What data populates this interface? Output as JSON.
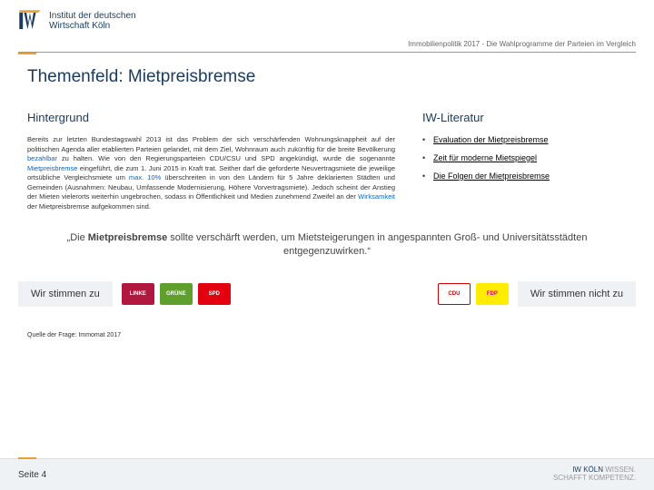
{
  "header": {
    "institute_line1": "Institut der deutschen",
    "institute_line2": "Wirtschaft Köln",
    "subtitle": "Immobilienpolitik 2017 - Die Wahlprogramme der Parteien im Vergleich"
  },
  "title": "Themenfeld: Mietpreisbremse",
  "background": {
    "heading": "Hintergrund",
    "text_parts": [
      "Bereits zur letzten Bundestagswahl 2013 ist das Problem der sich verschärfenden Wohnungsknappheit auf der politischen Agenda aller etablierten Parteien gelandet, mit dem Ziel, Wohnraum auch zukünftig für die breite Bevölkerung ",
      "bezahlbar",
      " zu halten. Wie von den Regierungsparteien CDU/CSU und SPD angekündigt, wurde die sogenannte ",
      "Mietpreisbremse",
      " eingeführt, die zum 1. Juni 2015 in Kraft trat. Seither darf die geforderte Neuvertragsmiete die jeweilige ortsübliche Vergleichsmiete um ",
      "max. 10%",
      " überschreiten in von den Ländern für 5 Jahre deklarierten Städten und Gemeinden (Ausnahmen: Neubau, Umfassende Modernisierung, Höhere Vorvertragsmiete). Jedoch scheint der Anstieg der Mieten vielerorts weiterhin ungebrochen, sodass in Öffentlichkeit und Medien zunehmend Zweifel an der ",
      "Wirksamkeit",
      " der Mietpreisbremse aufgekommen sind."
    ]
  },
  "literature": {
    "heading": "IW-Literatur",
    "items": [
      "Evaluation der Mietpreisbremse",
      "Zeit für moderne Mietspiegel",
      "Die Folgen der Mietpreisbremse"
    ]
  },
  "quote": {
    "prefix": "„Die ",
    "em": "Mietpreisbremse",
    "rest": " sollte verschärft werden, um Mietsteigerungen in angespannten Groß- und Universitätsstädten entgegenzuwirken.“"
  },
  "parties": {
    "agree_label": "Wir stimmen zu",
    "disagree_label": "Wir stimmen nicht zu",
    "agree": [
      {
        "name": "DIE LINKE",
        "bg": "#b01840",
        "text": "LINKE"
      },
      {
        "name": "GRÜNE",
        "bg": "#5fa02c",
        "text": "GRÜNE"
      },
      {
        "name": "SPD",
        "bg": "#e3000f",
        "text": "SPD"
      }
    ],
    "disagree": [
      {
        "name": "CDU",
        "bg": "#ffffff",
        "text": "CDU",
        "fg": "#cc0000",
        "border": "#cc0000"
      },
      {
        "name": "FDP",
        "bg": "#ffed00",
        "text": "FDP",
        "fg": "#e5007d"
      }
    ]
  },
  "source": "Quelle der Frage: Immomat 2017",
  "footer": {
    "page": "Seite 4",
    "brand_line1": "IW KÖLN ",
    "brand_line1b": "WISSEN.",
    "brand_line2": "SCHAFFT KOMPETENZ."
  },
  "colors": {
    "brand_blue": "#1a3b5c",
    "accent_orange": "#e8a030",
    "link_blue": "#0066cc",
    "panel_bg": "#eef2f5"
  }
}
